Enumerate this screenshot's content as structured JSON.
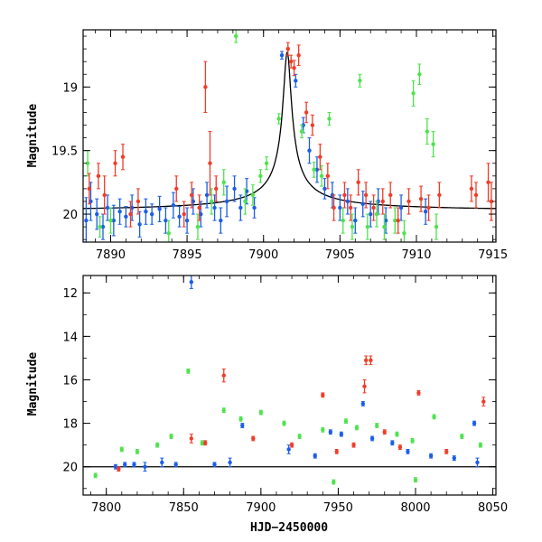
{
  "chart_data": [
    {
      "type": "scatter",
      "panel": "top",
      "xlabel": "",
      "ylabel": "Magnitude",
      "xlim": [
        7888.2,
        7915.2
      ],
      "ylim": [
        20.22,
        18.55
      ],
      "y_inverted": true,
      "x_ticks_major": [
        7890,
        7895,
        7900,
        7905,
        7910,
        7915
      ],
      "x_tick_labels": [
        "7890",
        "7895",
        "7900",
        "7905",
        "7910",
        "7915"
      ],
      "y_ticks_major": [
        19,
        19.5,
        20
      ],
      "y_tick_labels": [
        "19",
        "19.5",
        "20"
      ],
      "model_curve": {
        "color": "#000000",
        "baseline": 19.98,
        "peak": 18.72,
        "t0": 7901.55
      },
      "series": [
        {
          "color": "#1a5ee8",
          "points": [
            [
              7888.4,
              20.05,
              0.18
            ],
            [
              7888.7,
              19.9,
              0.15
            ],
            [
              7889.1,
              20.0,
              0.12
            ],
            [
              7889.5,
              20.1,
              0.1
            ],
            [
              7889.8,
              19.95,
              0.1
            ],
            [
              7890.2,
              20.05,
              0.12
            ],
            [
              7890.6,
              19.98,
              0.1
            ],
            [
              7891.0,
              20.02,
              0.08
            ],
            [
              7891.4,
              19.95,
              0.1
            ],
            [
              7891.9,
              20.08,
              0.1
            ],
            [
              7892.3,
              19.98,
              0.1
            ],
            [
              7892.7,
              20.0,
              0.08
            ],
            [
              7893.2,
              19.96,
              0.1
            ],
            [
              7893.6,
              20.05,
              0.1
            ],
            [
              7894.1,
              19.93,
              0.1
            ],
            [
              7894.5,
              20.02,
              0.08
            ],
            [
              7895.0,
              20.05,
              0.1
            ],
            [
              7895.4,
              19.9,
              0.1
            ],
            [
              7895.9,
              20.0,
              0.1
            ],
            [
              7896.3,
              19.85,
              0.1
            ],
            [
              7896.8,
              19.95,
              0.1
            ],
            [
              7897.2,
              20.05,
              0.1
            ],
            [
              7897.6,
              19.9,
              0.12
            ],
            [
              7898.1,
              19.8,
              0.1
            ],
            [
              7898.5,
              19.95,
              0.1
            ],
            [
              7898.9,
              19.82,
              0.1
            ],
            [
              7899.4,
              19.95,
              0.08
            ],
            [
              7901.2,
              18.75,
              0.03
            ],
            [
              7902.1,
              18.95,
              0.05
            ],
            [
              7902.6,
              19.3,
              0.06
            ],
            [
              7903.0,
              19.5,
              0.1
            ],
            [
              7903.5,
              19.65,
              0.1
            ],
            [
              7904.0,
              19.8,
              0.08
            ],
            [
              7904.5,
              19.85,
              0.1
            ],
            [
              7905.0,
              19.95,
              0.1
            ],
            [
              7905.5,
              19.9,
              0.1
            ],
            [
              7906.0,
              20.05,
              0.1
            ],
            [
              7906.5,
              19.92,
              0.1
            ],
            [
              7907.0,
              20.0,
              0.1
            ],
            [
              7907.5,
              19.9,
              0.1
            ],
            [
              7908.0,
              20.05,
              0.1
            ],
            [
              7909.0,
              19.95,
              0.1
            ],
            [
              7910.6,
              19.98,
              0.1
            ]
          ]
        },
        {
          "color": "#4de34d",
          "points": [
            [
              7888.5,
              19.6,
              0.1
            ],
            [
              7889.3,
              20.1,
              0.08
            ],
            [
              7890.0,
              20.05,
              0.1
            ],
            [
              7893.8,
              20.15,
              0.1
            ],
            [
              7895.7,
              20.1,
              0.1
            ],
            [
              7896.6,
              19.9,
              0.1
            ],
            [
              7897.4,
              19.75,
              0.1
            ],
            [
              7898.2,
              18.6,
              0.05
            ],
            [
              7898.8,
              19.9,
              0.1
            ],
            [
              7899.3,
              19.85,
              0.08
            ],
            [
              7899.8,
              19.7,
              0.05
            ],
            [
              7900.2,
              19.6,
              0.05
            ],
            [
              7901.0,
              19.25,
              0.04
            ],
            [
              7902.5,
              19.35,
              0.05
            ],
            [
              7903.3,
              19.65,
              0.06
            ],
            [
              7903.8,
              19.7,
              0.08
            ],
            [
              7904.3,
              19.25,
              0.05
            ],
            [
              7905.2,
              20.05,
              0.1
            ],
            [
              7905.8,
              20.1,
              0.1
            ],
            [
              7906.3,
              18.95,
              0.05
            ],
            [
              7906.8,
              20.1,
              0.1
            ],
            [
              7907.4,
              20.0,
              0.1
            ],
            [
              7907.9,
              20.1,
              0.1
            ],
            [
              7908.6,
              20.05,
              0.1
            ],
            [
              7909.2,
              20.15,
              0.1
            ],
            [
              7909.8,
              19.05,
              0.1
            ],
            [
              7910.2,
              18.9,
              0.08
            ],
            [
              7910.7,
              19.35,
              0.1
            ],
            [
              7911.1,
              19.45,
              0.1
            ],
            [
              7911.3,
              20.1,
              0.1
            ]
          ]
        },
        {
          "color": "#f03c28",
          "points": [
            [
              7888.6,
              19.8,
              0.12
            ],
            [
              7889.2,
              19.7,
              0.1
            ],
            [
              7889.6,
              19.85,
              0.15
            ],
            [
              7890.3,
              19.6,
              0.1
            ],
            [
              7890.8,
              19.55,
              0.1
            ],
            [
              7891.3,
              20.0,
              0.1
            ],
            [
              7891.8,
              19.9,
              0.1
            ],
            [
              7894.3,
              19.8,
              0.1
            ],
            [
              7894.8,
              20.0,
              0.1
            ],
            [
              7895.3,
              19.85,
              0.1
            ],
            [
              7895.8,
              19.95,
              0.1
            ],
            [
              7896.2,
              19.0,
              0.2
            ],
            [
              7896.5,
              19.6,
              0.25
            ],
            [
              7896.9,
              19.8,
              0.1
            ],
            [
              7901.6,
              18.7,
              0.05
            ],
            [
              7901.8,
              18.8,
              0.05
            ],
            [
              7902.0,
              18.85,
              0.06
            ],
            [
              7902.3,
              18.75,
              0.08
            ],
            [
              7902.8,
              19.2,
              0.08
            ],
            [
              7903.2,
              19.3,
              0.08
            ],
            [
              7903.7,
              19.55,
              0.1
            ],
            [
              7904.2,
              19.7,
              0.1
            ],
            [
              7904.6,
              19.95,
              0.1
            ],
            [
              7905.3,
              19.85,
              0.1
            ],
            [
              7905.7,
              19.95,
              0.1
            ],
            [
              7906.2,
              19.75,
              0.1
            ],
            [
              7906.7,
              19.85,
              0.1
            ],
            [
              7907.2,
              19.95,
              0.1
            ],
            [
              7907.8,
              19.9,
              0.1
            ],
            [
              7908.3,
              19.85,
              0.1
            ],
            [
              7908.8,
              20.05,
              0.1
            ],
            [
              7909.5,
              19.9,
              0.1
            ],
            [
              7910.3,
              19.88,
              0.1
            ],
            [
              7910.8,
              19.95,
              0.1
            ],
            [
              7911.5,
              19.85,
              0.1
            ],
            [
              7913.6,
              19.8,
              0.1
            ],
            [
              7913.9,
              19.85,
              0.1
            ],
            [
              7914.7,
              19.75,
              0.15
            ],
            [
              7914.9,
              19.9,
              0.15
            ]
          ]
        }
      ]
    },
    {
      "type": "scatter",
      "panel": "bottom",
      "xlabel": "HJD−2450000",
      "ylabel": "Magnitude",
      "xlim": [
        7785,
        8052
      ],
      "ylim": [
        21.3,
        11.2
      ],
      "y_inverted": true,
      "x_ticks_major": [
        7800,
        7850,
        7900,
        7950,
        8000,
        8050
      ],
      "x_tick_labels": [
        "7800",
        "7850",
        "7900",
        "7950",
        "8000",
        "8050"
      ],
      "y_ticks_major": [
        12,
        14,
        16,
        18,
        20
      ],
      "y_tick_labels": [
        "12",
        "14",
        "16",
        "18",
        "20"
      ],
      "reference_line": 20.0,
      "series": [
        {
          "color": "#1a5ee8",
          "points": [
            [
              7855,
              11.5,
              0.3
            ],
            [
              7918,
              19.2,
              0.2
            ],
            [
              7966,
              17.1,
              0.1
            ],
            [
              7818,
              19.9,
              0.1
            ],
            [
              7825,
              20.0,
              0.2
            ],
            [
              7836,
              19.8,
              0.2
            ],
            [
              7845,
              19.9,
              0.1
            ],
            [
              7870,
              19.9,
              0.1
            ],
            [
              7880,
              19.8,
              0.2
            ],
            [
              7888,
              18.1,
              0.1
            ],
            [
              7935,
              19.5,
              0.1
            ],
            [
              7945,
              18.4,
              0.1
            ],
            [
              7952,
              18.5,
              0.1
            ],
            [
              7972,
              18.7,
              0.1
            ],
            [
              7985,
              18.9,
              0.1
            ],
            [
              7995,
              19.3,
              0.1
            ],
            [
              8010,
              19.5,
              0.1
            ],
            [
              8025,
              19.6,
              0.1
            ],
            [
              8038,
              18.0,
              0.1
            ],
            [
              8040,
              19.8,
              0.2
            ],
            [
              7806,
              20.0,
              0.1
            ],
            [
              7812,
              19.9,
              0.1
            ]
          ]
        },
        {
          "color": "#4de34d",
          "points": [
            [
              7853,
              15.6,
              0.1
            ],
            [
              7793,
              20.4,
              0.1
            ],
            [
              7810,
              19.2,
              0.1
            ],
            [
              7820,
              19.3,
              0.1
            ],
            [
              7833,
              19.0,
              0.1
            ],
            [
              7842,
              18.6,
              0.1
            ],
            [
              7862,
              18.9,
              0.1
            ],
            [
              7876,
              17.4,
              0.1
            ],
            [
              7887,
              17.8,
              0.1
            ],
            [
              7900,
              17.5,
              0.1
            ],
            [
              7915,
              18.0,
              0.1
            ],
            [
              7925,
              18.6,
              0.1
            ],
            [
              7940,
              18.3,
              0.1
            ],
            [
              7955,
              17.9,
              0.1
            ],
            [
              7962,
              18.2,
              0.1
            ],
            [
              7975,
              18.1,
              0.1
            ],
            [
              7988,
              18.5,
              0.1
            ],
            [
              7998,
              18.8,
              0.1
            ],
            [
              8012,
              17.7,
              0.1
            ],
            [
              8030,
              18.6,
              0.1
            ],
            [
              8042,
              19.0,
              0.1
            ],
            [
              7947,
              20.7,
              0.1
            ],
            [
              8000,
              20.6,
              0.1
            ]
          ]
        },
        {
          "color": "#f03c28",
          "points": [
            [
              7876,
              15.8,
              0.3
            ],
            [
              7940,
              16.7,
              0.1
            ],
            [
              7967,
              16.3,
              0.3
            ],
            [
              7968,
              15.1,
              0.2
            ],
            [
              7971,
              15.1,
              0.2
            ],
            [
              8002,
              16.6,
              0.1
            ],
            [
              8044,
              17.0,
              0.2
            ],
            [
              7855,
              18.7,
              0.2
            ],
            [
              7864,
              18.9,
              0.1
            ],
            [
              7895,
              18.7,
              0.1
            ],
            [
              7920,
              19.0,
              0.1
            ],
            [
              7949,
              19.3,
              0.1
            ],
            [
              7960,
              19.0,
              0.1
            ],
            [
              7980,
              18.4,
              0.1
            ],
            [
              7990,
              19.1,
              0.1
            ],
            [
              8020,
              19.3,
              0.1
            ],
            [
              7808,
              20.1,
              0.1
            ]
          ]
        }
      ]
    }
  ]
}
